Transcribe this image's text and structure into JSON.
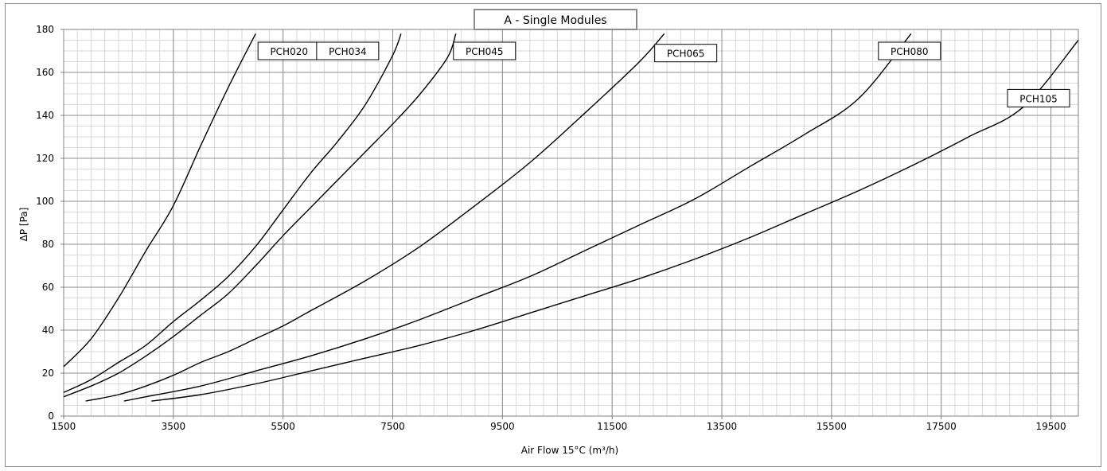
{
  "chart_data": {
    "type": "line",
    "title": "A - Single Modules",
    "xlabel": "Air Flow 15°C (m³/h)",
    "ylabel": "ΔP [Pa]",
    "xlim": [
      1500,
      20000
    ],
    "ylim": [
      0,
      180
    ],
    "x_ticks": [
      "1500",
      "3500",
      "5500",
      "7500",
      "9500",
      "11500",
      "13500",
      "15500",
      "17500",
      "19500"
    ],
    "y_ticks": [
      "0",
      "20",
      "40",
      "60",
      "80",
      "100",
      "120",
      "140",
      "160",
      "180"
    ],
    "grid": true,
    "series": [
      {
        "name": "PCH020",
        "x": [
          1500,
          2000,
          2500,
          3000,
          3500,
          4000,
          4500,
          5000
        ],
        "y": [
          23,
          36,
          55,
          77,
          98,
          126,
          153,
          178
        ]
      },
      {
        "name": "PCH034",
        "x": [
          1500,
          2000,
          2500,
          3000,
          3500,
          4000,
          4500,
          5000,
          5500,
          6000,
          6500,
          7000,
          7500,
          7650
        ],
        "y": [
          11,
          17,
          25,
          33,
          44,
          54,
          65,
          79,
          96,
          113,
          128,
          145,
          168,
          178
        ]
      },
      {
        "name": "PCH045",
        "x": [
          1500,
          2000,
          2500,
          3000,
          3500,
          4000,
          4500,
          5000,
          5500,
          6000,
          6500,
          7000,
          7500,
          8000,
          8500,
          8650
        ],
        "y": [
          9,
          14,
          20,
          28,
          37,
          47,
          57,
          70,
          84,
          97,
          110,
          123,
          136,
          150,
          167,
          178
        ]
      },
      {
        "name": "PCH065",
        "x": [
          1900,
          2500,
          3000,
          3500,
          4000,
          4500,
          5000,
          5500,
          6000,
          7000,
          8000,
          9000,
          10000,
          11000,
          12000,
          12450
        ],
        "y": [
          7,
          10,
          14,
          19,
          25,
          30,
          36,
          42,
          49,
          63,
          79,
          98,
          118,
          141,
          165,
          178
        ]
      },
      {
        "name": "PCH080",
        "x": [
          2600,
          3000,
          4000,
          5000,
          6000,
          7000,
          8000,
          9000,
          10000,
          11000,
          12000,
          13000,
          14000,
          15000,
          16000,
          16950
        ],
        "y": [
          7,
          9,
          14,
          21,
          28,
          36,
          45,
          55,
          65,
          77,
          89,
          101,
          116,
          131,
          148,
          178
        ]
      },
      {
        "name": "PCH105",
        "x": [
          3100,
          4000,
          5000,
          6000,
          7000,
          8000,
          9000,
          10000,
          11000,
          12000,
          13000,
          14000,
          15000,
          16000,
          17000,
          18000,
          19000,
          20000
        ],
        "y": [
          7,
          10,
          15,
          21,
          27,
          33,
          40,
          48,
          56,
          64,
          73,
          83,
          94,
          105,
          117,
          130,
          144,
          175
        ]
      }
    ]
  }
}
